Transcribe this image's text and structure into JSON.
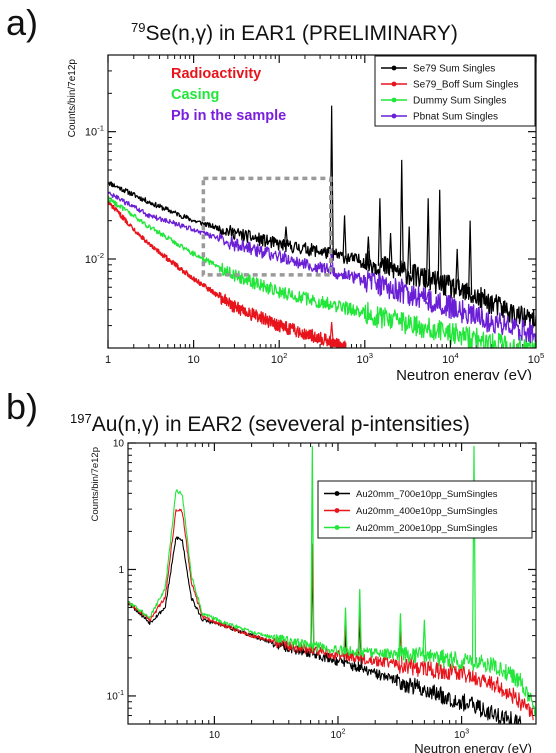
{
  "panels": [
    {
      "letter": "a)",
      "title_sup": "79",
      "title_main": "Se(n,γ) in EAR1 (PRELIMINARY)"
    },
    {
      "letter": "b)",
      "title_sup": "197",
      "title_main": "Au(n,γ) in EAR2 (seveveral p-intensities)"
    }
  ],
  "chart_data": [
    {
      "type": "line",
      "title": "79Se(n,γ) in EAR1 (PRELIMINARY)",
      "xlabel": "Neutron energy (eV)",
      "ylabel": "Counts/bin/7e12p",
      "xscale": "log",
      "yscale": "log",
      "xlim": [
        1,
        100000
      ],
      "ylim": [
        0.002,
        0.4
      ],
      "x_ticks": [
        {
          "v": 1,
          "b": "1",
          "e": ""
        },
        {
          "v": 10,
          "b": "10",
          "e": ""
        },
        {
          "v": 100,
          "b": "10",
          "e": "2"
        },
        {
          "v": 1000,
          "b": "10",
          "e": "3"
        },
        {
          "v": 10000,
          "b": "10",
          "e": "4"
        },
        {
          "v": 100000,
          "b": "10",
          "e": "5"
        }
      ],
      "y_ticks": [
        {
          "v": 0.01,
          "b": "10",
          "e": "-2"
        },
        {
          "v": 0.1,
          "b": "10",
          "e": "-1"
        }
      ],
      "annotations": [
        {
          "text": "Radioactivity",
          "color": "#e8141b"
        },
        {
          "text": "Casing",
          "color": "#22e63a"
        },
        {
          "text": "Pb in the sample",
          "color": "#7a1fe0"
        }
      ],
      "legend_position": "top-right",
      "highlight_box": {
        "x": [
          13,
          400
        ],
        "y": [
          0.0075,
          0.043
        ]
      },
      "series": [
        {
          "name": "Se79 Sum Singles",
          "color": "#000000",
          "x": [
            1,
            3,
            10,
            30,
            100,
            300,
            1000,
            3000,
            10000,
            30000,
            60000,
            100000
          ],
          "y": [
            0.04,
            0.028,
            0.02,
            0.016,
            0.013,
            0.0115,
            0.0095,
            0.0078,
            0.006,
            0.0045,
            0.0036,
            0.0032
          ],
          "peaks": [
            [
              30,
              0.017
            ],
            [
              120,
              0.018
            ],
            [
              410,
              0.16
            ],
            [
              580,
              0.022
            ],
            [
              1100,
              0.015
            ],
            [
              1500,
              0.03
            ],
            [
              2000,
              0.016
            ],
            [
              2700,
              0.06
            ],
            [
              3300,
              0.018
            ],
            [
              5500,
              0.03
            ],
            [
              7500,
              0.035
            ],
            [
              12000,
              0.012
            ],
            [
              17000,
              0.02
            ]
          ]
        },
        {
          "name": "Se79_Boff Sum Singles",
          "color": "#e8141b",
          "x": [
            1,
            3,
            10,
            30,
            100,
            300,
            600
          ],
          "y": [
            0.028,
            0.013,
            0.007,
            0.0042,
            0.003,
            0.0024,
            0.002
          ],
          "peaks": [
            [
              410,
              0.0032
            ]
          ]
        },
        {
          "name": "Dummy Sum Singles",
          "color": "#22e63a",
          "x": [
            1,
            3,
            10,
            30,
            100,
            300,
            1000,
            3000,
            10000,
            30000,
            50000,
            100000
          ],
          "y": [
            0.03,
            0.018,
            0.011,
            0.0075,
            0.0055,
            0.0046,
            0.0038,
            0.0031,
            0.0026,
            0.0022,
            0.002,
            0.002
          ],
          "peaks": []
        },
        {
          "name": "Pbnat Sum Singles",
          "color": "#6a1fd6",
          "x": [
            1,
            3,
            10,
            30,
            100,
            300,
            1000,
            3000,
            10000,
            30000,
            60000,
            100000
          ],
          "y": [
            0.033,
            0.022,
            0.017,
            0.013,
            0.0105,
            0.0085,
            0.0068,
            0.0054,
            0.0042,
            0.0032,
            0.0028,
            0.0026
          ],
          "peaks": [
            [
              410,
              0.012
            ],
            [
              1500,
              0.0075
            ],
            [
              2700,
              0.007
            ],
            [
              5500,
              0.0055
            ]
          ]
        }
      ]
    },
    {
      "type": "line",
      "title": "197Au(n,γ) in EAR2 (seveveral p-intensities)",
      "xlabel": "Neutron energy (eV)",
      "ylabel": "Counts/bin/7e12p",
      "xscale": "log",
      "yscale": "log",
      "xlim": [
        2,
        4000
      ],
      "ylim": [
        0.06,
        10
      ],
      "x_ticks": [
        {
          "v": 10,
          "b": "10",
          "e": ""
        },
        {
          "v": 100,
          "b": "10",
          "e": "2"
        },
        {
          "v": 1000,
          "b": "10",
          "e": "3"
        }
      ],
      "y_ticks": [
        {
          "v": 0.1,
          "b": "10",
          "e": "-1"
        },
        {
          "v": 1,
          "b": "1",
          "e": ""
        },
        {
          "v": 10,
          "b": "10",
          "e": ""
        }
      ],
      "legend_position": "top-right",
      "series": [
        {
          "name": "Au20mm_700e10pp_SumSingles",
          "color": "#000000",
          "x": [
            2,
            3,
            4,
            4.9,
            5.5,
            6.5,
            8,
            12,
            20,
            40,
            60,
            100,
            200,
            400,
            1000,
            2000,
            3000
          ],
          "y": [
            0.55,
            0.38,
            0.5,
            1.8,
            1.7,
            0.6,
            0.4,
            0.36,
            0.3,
            0.24,
            0.22,
            0.19,
            0.15,
            0.12,
            0.09,
            0.07,
            0.06
          ],
          "peaks": [
            [
              62,
              1.2
            ],
            [
              115,
              0.32
            ],
            [
              150,
              0.45
            ]
          ]
        },
        {
          "name": "Au20mm_400e10pp_SumSingles",
          "color": "#e8141b",
          "x": [
            2,
            3,
            4,
            4.9,
            5.5,
            6.5,
            8,
            12,
            20,
            40,
            60,
            100,
            200,
            400,
            1000,
            2000,
            3000,
            3800
          ],
          "y": [
            0.55,
            0.4,
            0.6,
            3.0,
            2.9,
            0.8,
            0.42,
            0.36,
            0.3,
            0.25,
            0.23,
            0.21,
            0.19,
            0.17,
            0.15,
            0.12,
            0.09,
            0.07
          ],
          "peaks": [
            [
              62,
              1.6
            ],
            [
              115,
              0.4
            ],
            [
              150,
              0.55
            ],
            [
              320,
              0.35
            ]
          ]
        },
        {
          "name": "Au20mm_200e10pp_SumSingles",
          "color": "#22e63a",
          "x": [
            2,
            3,
            4,
            4.9,
            5.5,
            6.5,
            8,
            12,
            20,
            40,
            60,
            100,
            200,
            400,
            1000,
            2000,
            3000,
            4000
          ],
          "y": [
            0.55,
            0.42,
            0.7,
            4.2,
            4.0,
            0.9,
            0.45,
            0.38,
            0.32,
            0.27,
            0.25,
            0.23,
            0.22,
            0.21,
            0.19,
            0.17,
            0.13,
            0.08
          ],
          "peaks": [
            [
              62,
              9.5
            ],
            [
              115,
              0.5
            ],
            [
              150,
              0.7
            ],
            [
              320,
              0.45
            ],
            [
              500,
              0.4
            ],
            [
              1260,
              9.5
            ]
          ]
        }
      ]
    }
  ]
}
